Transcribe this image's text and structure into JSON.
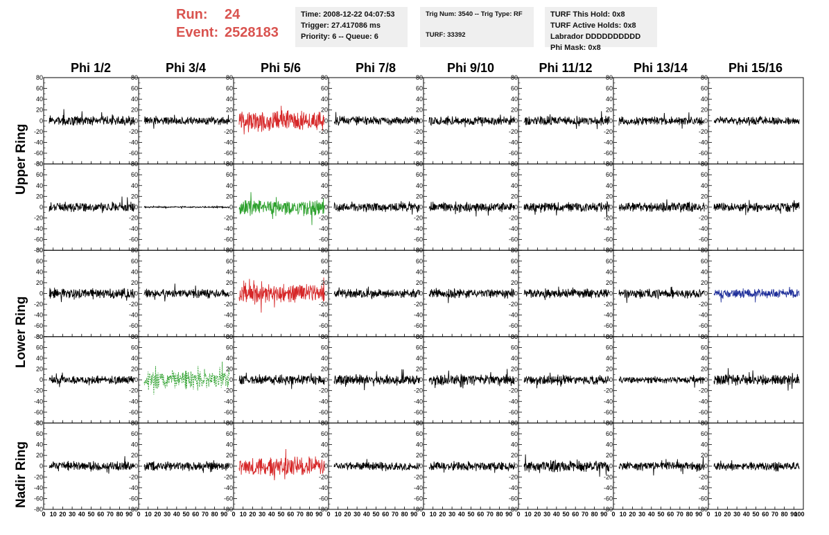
{
  "header": {
    "run_label": "Run:",
    "run_value": "24",
    "event_label": "Event:",
    "event_value": "2528183"
  },
  "info1": {
    "time": "Time: 2008-12-22 04:07:53",
    "trigger": "Trigger: 27.417086 ms",
    "priority": "Priority: 6 -- Queue: 6"
  },
  "info2": {
    "trig": "Trig Num: 3540 -- Trig Type: RF",
    "turf": "TURF: 33392"
  },
  "info3": {
    "hold": "TURF This Hold: 0x8",
    "active": "TURF Active Holds: 0x8",
    "labrador": "Labrador DDDDDDDDDD",
    "phimask": "Phi Mask: 0x8"
  },
  "rings": {
    "upper": "Upper Ring",
    "lower": "Lower Ring",
    "nadir": "Nadir Ring"
  },
  "colors": {
    "red": "#d62728",
    "green": "#2ca02c",
    "blue": "#1f2f9a",
    "black": "#000000",
    "header_red": "#d9534f"
  },
  "chart_data": {
    "type": "line",
    "columns": [
      "Phi 1/2",
      "Phi 3/4",
      "Phi 5/6",
      "Phi 7/8",
      "Phi 9/10",
      "Phi 11/12",
      "Phi 13/14",
      "Phi 15/16"
    ],
    "x_ticks": [
      "0",
      "10",
      "20",
      "30",
      "40",
      "50",
      "60",
      "70",
      "80",
      "90"
    ],
    "x_range": [
      0,
      100
    ],
    "y_ticks": [
      "80",
      "60",
      "40",
      "20",
      "0",
      "-20",
      "-40",
      "-60",
      "-80"
    ],
    "y_range": [
      -80,
      80
    ],
    "grid": false,
    "panels": [
      [
        {
          "color": "black",
          "amp": 14,
          "style": "solid"
        },
        {
          "color": "black",
          "amp": 12,
          "style": "solid"
        },
        {
          "color": "red",
          "amp": 30,
          "style": "solid"
        },
        {
          "color": "black",
          "amp": 13,
          "style": "solid"
        },
        {
          "color": "black",
          "amp": 13,
          "style": "solid"
        },
        {
          "color": "black",
          "amp": 13,
          "style": "solid"
        },
        {
          "color": "black",
          "amp": 12,
          "style": "solid"
        },
        {
          "color": "black",
          "amp": 12,
          "style": "solid"
        }
      ],
      [
        {
          "color": "black",
          "amp": 14,
          "style": "solid"
        },
        {
          "color": "black",
          "amp": 2,
          "style": "solid"
        },
        {
          "color": "green",
          "amp": 24,
          "style": "solid"
        },
        {
          "color": "black",
          "amp": 13,
          "style": "solid"
        },
        {
          "color": "black",
          "amp": 14,
          "style": "solid"
        },
        {
          "color": "black",
          "amp": 14,
          "style": "solid"
        },
        {
          "color": "black",
          "amp": 14,
          "style": "solid"
        },
        {
          "color": "black",
          "amp": 14,
          "style": "solid"
        }
      ],
      [
        {
          "color": "black",
          "amp": 15,
          "style": "solid"
        },
        {
          "color": "black",
          "amp": 13,
          "style": "solid"
        },
        {
          "color": "red",
          "amp": 28,
          "style": "solid"
        },
        {
          "color": "black",
          "amp": 13,
          "style": "solid"
        },
        {
          "color": "black",
          "amp": 14,
          "style": "solid"
        },
        {
          "color": "black",
          "amp": 14,
          "style": "solid"
        },
        {
          "color": "black",
          "amp": 13,
          "style": "solid"
        },
        {
          "color": "blue",
          "amp": 13,
          "style": "solid"
        }
      ],
      [
        {
          "color": "black",
          "amp": 12,
          "style": "solid"
        },
        {
          "color": "green",
          "amp": 26,
          "style": "dashed"
        },
        {
          "color": "black",
          "amp": 15,
          "style": "solid"
        },
        {
          "color": "black",
          "amp": 15,
          "style": "solid"
        },
        {
          "color": "black",
          "amp": 15,
          "style": "solid"
        },
        {
          "color": "black",
          "amp": 14,
          "style": "solid"
        },
        {
          "color": "black",
          "amp": 10,
          "style": "solid"
        },
        {
          "color": "black",
          "amp": 16,
          "style": "solid"
        }
      ],
      [
        {
          "color": "black",
          "amp": 14,
          "style": "solid"
        },
        {
          "color": "black",
          "amp": 13,
          "style": "solid"
        },
        {
          "color": "red",
          "amp": 26,
          "style": "solid"
        },
        {
          "color": "black",
          "amp": 13,
          "style": "solid"
        },
        {
          "color": "black",
          "amp": 13,
          "style": "solid"
        },
        {
          "color": "black",
          "amp": 16,
          "style": "solid"
        },
        {
          "color": "black",
          "amp": 12,
          "style": "solid"
        },
        {
          "color": "black",
          "amp": 12,
          "style": "solid"
        }
      ]
    ]
  }
}
